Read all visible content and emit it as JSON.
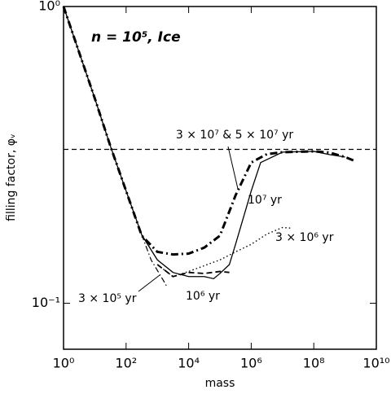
{
  "chart_data": {
    "type": "line",
    "title": "n = 10⁵, Ice",
    "xlabel": "mass",
    "ylabel": "filling factor, φᵥ",
    "xscale": "log",
    "yscale": "log",
    "xlim": [
      1,
      10000000000
    ],
    "ylim": [
      0.07,
      1
    ],
    "xticks": [
      {
        "value": 1,
        "label": "10⁰"
      },
      {
        "value": 100,
        "label": "10²"
      },
      {
        "value": 10000,
        "label": "10⁴"
      },
      {
        "value": 1000000,
        "label": "10⁶"
      },
      {
        "value": 100000000,
        "label": "10⁸"
      },
      {
        "value": 10000000000,
        "label": "10¹⁰"
      }
    ],
    "yticks": [
      {
        "value": 0.1,
        "label": "10⁻¹"
      },
      {
        "value": 1,
        "label": "10⁰"
      }
    ],
    "reference_line": 0.33,
    "series": [
      {
        "name": "3 × 10⁷ & 5 × 10⁷ yr",
        "color": "#000000",
        "style": "dashdot-thick",
        "x": [
          1,
          10,
          31.6,
          100,
          316,
          1000,
          3160,
          10000,
          31600,
          100000,
          316000,
          1000000,
          3160000,
          10000000,
          100000000,
          316000000,
          1000000000,
          2000000000
        ],
        "values": [
          1,
          0.49,
          0.338,
          0.239,
          0.169,
          0.149,
          0.146,
          0.147,
          0.154,
          0.169,
          0.231,
          0.298,
          0.318,
          0.323,
          0.325,
          0.322,
          0.311,
          0.302
        ]
      },
      {
        "name": "10⁷ yr",
        "color": "#000000",
        "style": "solid",
        "x": [
          1,
          10,
          31.6,
          100,
          316,
          1000,
          3160,
          10000,
          31600,
          63000,
          100000,
          200000,
          316000,
          1000000,
          2000000,
          10000000,
          100000000,
          316000000,
          1000000000
        ],
        "values": [
          1,
          0.49,
          0.338,
          0.239,
          0.17,
          0.14,
          0.127,
          0.123,
          0.123,
          0.121,
          0.126,
          0.135,
          0.158,
          0.239,
          0.298,
          0.323,
          0.325,
          0.317,
          0.311
        ]
      },
      {
        "name": "3 × 10⁶ yr",
        "color": "#000000",
        "style": "dotted",
        "x": [
          1000,
          3160,
          10000,
          100000,
          316000,
          1000000,
          3160000,
          10000000,
          20000000
        ],
        "values": [
          0.135,
          0.123,
          0.128,
          0.14,
          0.149,
          0.158,
          0.171,
          0.18,
          0.179
        ]
      },
      {
        "name": "10⁶ yr",
        "color": "#000000",
        "style": "dashed",
        "x": [
          1000,
          3160,
          10000,
          31600,
          100000,
          200000
        ],
        "values": [
          0.135,
          0.123,
          0.127,
          0.126,
          0.128,
          0.127
        ]
      },
      {
        "name": "3 × 10⁵ yr",
        "color": "#000000",
        "style": "dashdot",
        "x": [
          316,
          630,
          1580,
          2000
        ],
        "values": [
          0.17,
          0.14,
          0.119,
          0.114
        ]
      }
    ]
  }
}
